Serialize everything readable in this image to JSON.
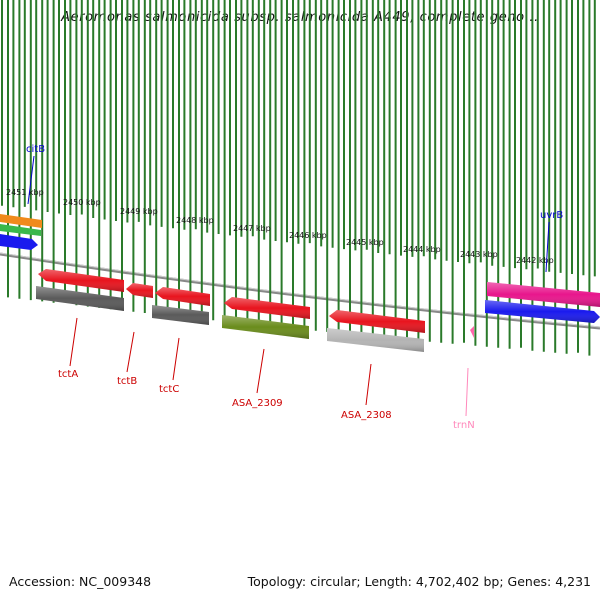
{
  "header": {
    "title": "Aeromonas salmonicida subsp. salmonicida A449, complete geno..."
  },
  "footer": {
    "accession": "Accession: NC_009348",
    "topology": "Topology: circular; Length: 4,702,402 bp; Genes: 4,231"
  },
  "colors": {
    "forward_gene": "#e8141e",
    "forward_gene_alt": "#4a7a10",
    "reverse_gene": "#1a1aee",
    "cds_grey": "#5a5a5a",
    "cds_light": "#b0b0b0",
    "rna": "#ff66aa",
    "orange": "#f08a1c",
    "green": "#3ab84a",
    "magenta": "#e8168c",
    "label_red": "#cc0000",
    "label_blue": "#0000cc",
    "label_pink": "#ff88bb",
    "tick": "#2a7a2a"
  },
  "scale": {
    "kbp_ticks": [
      "2451 kbp",
      "2450 kbp",
      "2449 kbp",
      "2448 kbp",
      "2447 kbp",
      "2446 kbp",
      "2445 kbp",
      "2444 kbp",
      "2443 kbp",
      "2442 kbp"
    ]
  },
  "genes": {
    "top": [
      {
        "name": "citB",
        "color": "label_blue"
      },
      {
        "name": "uvrB",
        "color": "label_blue"
      }
    ],
    "bottom": [
      {
        "name": "tctA",
        "color": "label_red"
      },
      {
        "name": "tctB",
        "color": "label_red"
      },
      {
        "name": "tctC",
        "color": "label_red"
      },
      {
        "name": "ASA_2309",
        "color": "label_red"
      },
      {
        "name": "ASA_2308",
        "color": "label_red"
      },
      {
        "name": "trnN",
        "color": "label_pink"
      }
    ]
  }
}
